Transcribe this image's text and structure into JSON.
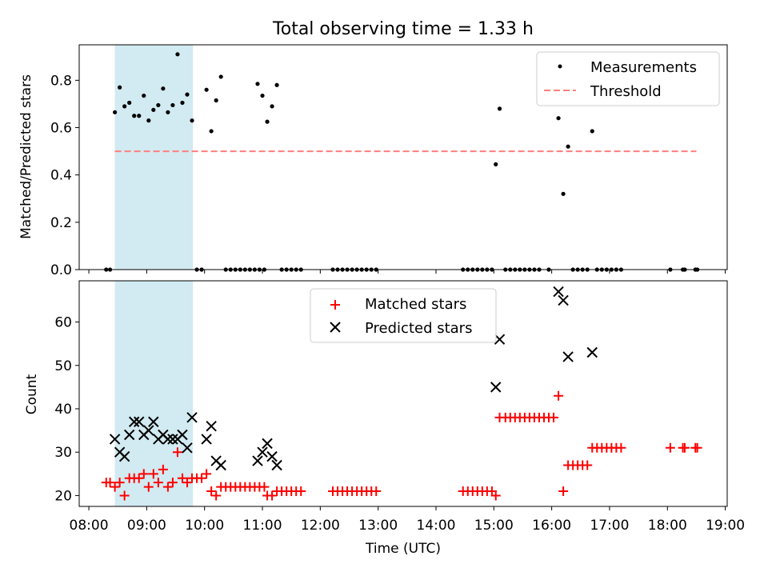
{
  "title": "Total observing time = 1.33 h",
  "colors": {
    "measurement": "#000000",
    "threshold": "#ff7f7f",
    "matched": "#ff0000",
    "predicted": "#000000",
    "highlight": "#add8e6"
  },
  "chart_data": [
    {
      "type": "scatter",
      "ylabel": "Matched/Predicted stars",
      "ylim": [
        0,
        0.95
      ],
      "yticks": [
        0.0,
        0.2,
        0.4,
        0.6,
        0.8
      ],
      "ytick_labels": [
        "0.0",
        "0.2",
        "0.4",
        "0.6",
        "0.8"
      ],
      "highlight_span": [
        "08:27",
        "09:48"
      ],
      "legend": {
        "position": "upper right",
        "entries": [
          "Measurements",
          "Threshold"
        ]
      },
      "threshold": {
        "name": "Threshold",
        "value": 0.5,
        "x_range": [
          "08:27",
          "18:30"
        ]
      },
      "series": [
        {
          "name": "Measurements",
          "points": [
            [
              "08:18",
              0
            ],
            [
              "08:22",
              0
            ],
            [
              "08:27",
              0.665
            ],
            [
              "08:32",
              0.77
            ],
            [
              "08:37",
              0.69
            ],
            [
              "08:42",
              0.705
            ],
            [
              "08:47",
              0.65
            ],
            [
              "08:52",
              0.65
            ],
            [
              "08:57",
              0.735
            ],
            [
              "09:02",
              0.63
            ],
            [
              "09:07",
              0.675
            ],
            [
              "09:12",
              0.695
            ],
            [
              "09:17",
              0.765
            ],
            [
              "09:22",
              0.665
            ],
            [
              "09:27",
              0.695
            ],
            [
              "09:32",
              0.91
            ],
            [
              "09:37",
              0.705
            ],
            [
              "09:42",
              0.74
            ],
            [
              "09:47",
              0.63
            ],
            [
              "09:52",
              0
            ],
            [
              "09:57",
              0
            ],
            [
              "10:02",
              0.76
            ],
            [
              "10:07",
              0.585
            ],
            [
              "10:12",
              0.715
            ],
            [
              "10:17",
              0.815
            ],
            [
              "10:22",
              0
            ],
            [
              "10:27",
              0
            ],
            [
              "10:32",
              0
            ],
            [
              "10:37",
              0
            ],
            [
              "10:42",
              0
            ],
            [
              "10:47",
              0
            ],
            [
              "10:52",
              0
            ],
            [
              "10:57",
              0
            ],
            [
              "11:02",
              0
            ],
            [
              "10:55",
              0.785
            ],
            [
              "11:00",
              0.735
            ],
            [
              "11:05",
              0.625
            ],
            [
              "11:10",
              0.69
            ],
            [
              "11:15",
              0.78
            ],
            [
              "11:20",
              0
            ],
            [
              "11:25",
              0
            ],
            [
              "11:30",
              0
            ],
            [
              "11:35",
              0
            ],
            [
              "11:40",
              0
            ],
            [
              "12:13",
              0
            ],
            [
              "12:18",
              0
            ],
            [
              "12:23",
              0
            ],
            [
              "12:28",
              0
            ],
            [
              "12:33",
              0
            ],
            [
              "12:38",
              0
            ],
            [
              "12:43",
              0
            ],
            [
              "12:48",
              0
            ],
            [
              "12:53",
              0
            ],
            [
              "12:58",
              0
            ],
            [
              "14:28",
              0
            ],
            [
              "14:33",
              0
            ],
            [
              "14:38",
              0
            ],
            [
              "14:43",
              0
            ],
            [
              "14:48",
              0
            ],
            [
              "14:53",
              0
            ],
            [
              "14:58",
              0
            ],
            [
              "15:02",
              0.445
            ],
            [
              "15:06",
              0.68
            ],
            [
              "15:12",
              0
            ],
            [
              "15:17",
              0
            ],
            [
              "15:22",
              0
            ],
            [
              "15:27",
              0
            ],
            [
              "15:32",
              0
            ],
            [
              "15:37",
              0
            ],
            [
              "15:42",
              0
            ],
            [
              "15:47",
              0
            ],
            [
              "15:57",
              0
            ],
            [
              "16:07",
              0.64
            ],
            [
              "16:12",
              0.32
            ],
            [
              "16:17",
              0.52
            ],
            [
              "16:22",
              0
            ],
            [
              "16:27",
              0
            ],
            [
              "16:32",
              0
            ],
            [
              "16:37",
              0
            ],
            [
              "16:42",
              0.585
            ],
            [
              "16:47",
              0
            ],
            [
              "16:52",
              0
            ],
            [
              "16:57",
              0
            ],
            [
              "17:02",
              0
            ],
            [
              "17:07",
              0
            ],
            [
              "17:12",
              0
            ],
            [
              "18:03",
              0
            ],
            [
              "18:16",
              0
            ],
            [
              "18:18",
              0
            ],
            [
              "18:29",
              0
            ],
            [
              "18:31",
              0
            ]
          ]
        }
      ]
    },
    {
      "type": "scatter",
      "xlabel": "Time (UTC)",
      "ylabel": "Count",
      "xlim": [
        "07:50",
        "19:02"
      ],
      "xticks": [
        "08:00",
        "09:00",
        "10:00",
        "11:00",
        "12:00",
        "13:00",
        "14:00",
        "15:00",
        "16:00",
        "17:00",
        "18:00",
        "19:00"
      ],
      "ylim": [
        17.5,
        69.5
      ],
      "yticks": [
        20,
        30,
        40,
        50,
        60
      ],
      "ytick_labels": [
        "20",
        "30",
        "40",
        "50",
        "60"
      ],
      "highlight_span": [
        "08:27",
        "09:48"
      ],
      "legend": {
        "position": "upper center",
        "entries": [
          "Matched stars",
          "Predicted stars"
        ]
      },
      "series": [
        {
          "name": "Matched stars",
          "marker": "+",
          "points": [
            [
              "08:18",
              23
            ],
            [
              "08:22",
              23
            ],
            [
              "08:27",
              22
            ],
            [
              "08:32",
              23
            ],
            [
              "08:37",
              20
            ],
            [
              "08:42",
              24
            ],
            [
              "08:47",
              24
            ],
            [
              "08:52",
              24
            ],
            [
              "08:57",
              25
            ],
            [
              "09:02",
              22
            ],
            [
              "09:07",
              25
            ],
            [
              "09:12",
              23
            ],
            [
              "09:17",
              26
            ],
            [
              "09:22",
              22
            ],
            [
              "09:27",
              23
            ],
            [
              "09:32",
              30
            ],
            [
              "09:37",
              24
            ],
            [
              "09:42",
              23
            ],
            [
              "09:47",
              24
            ],
            [
              "09:52",
              24
            ],
            [
              "09:57",
              24
            ],
            [
              "10:02",
              25
            ],
            [
              "10:07",
              21
            ],
            [
              "10:12",
              20
            ],
            [
              "10:17",
              22
            ],
            [
              "10:22",
              22
            ],
            [
              "10:27",
              22
            ],
            [
              "10:32",
              22
            ],
            [
              "10:37",
              22
            ],
            [
              "10:42",
              22
            ],
            [
              "10:47",
              22
            ],
            [
              "10:52",
              22
            ],
            [
              "10:57",
              22
            ],
            [
              "11:02",
              22
            ],
            [
              "11:05",
              20
            ],
            [
              "11:10",
              20
            ],
            [
              "11:15",
              21
            ],
            [
              "11:20",
              21
            ],
            [
              "11:25",
              21
            ],
            [
              "11:30",
              21
            ],
            [
              "11:35",
              21
            ],
            [
              "11:40",
              21
            ],
            [
              "12:13",
              21
            ],
            [
              "12:18",
              21
            ],
            [
              "12:23",
              21
            ],
            [
              "12:28",
              21
            ],
            [
              "12:33",
              21
            ],
            [
              "12:38",
              21
            ],
            [
              "12:43",
              21
            ],
            [
              "12:48",
              21
            ],
            [
              "12:53",
              21
            ],
            [
              "12:58",
              21
            ],
            [
              "14:28",
              21
            ],
            [
              "14:33",
              21
            ],
            [
              "14:38",
              21
            ],
            [
              "14:43",
              21
            ],
            [
              "14:48",
              21
            ],
            [
              "14:53",
              21
            ],
            [
              "14:58",
              21
            ],
            [
              "15:02",
              20
            ],
            [
              "15:06",
              38
            ],
            [
              "15:12",
              38
            ],
            [
              "15:17",
              38
            ],
            [
              "15:22",
              38
            ],
            [
              "15:27",
              38
            ],
            [
              "15:32",
              38
            ],
            [
              "15:37",
              38
            ],
            [
              "15:42",
              38
            ],
            [
              "15:47",
              38
            ],
            [
              "15:52",
              38
            ],
            [
              "15:57",
              38
            ],
            [
              "16:02",
              38
            ],
            [
              "16:07",
              43
            ],
            [
              "16:12",
              21
            ],
            [
              "16:17",
              27
            ],
            [
              "16:22",
              27
            ],
            [
              "16:27",
              27
            ],
            [
              "16:32",
              27
            ],
            [
              "16:37",
              27
            ],
            [
              "16:42",
              31
            ],
            [
              "16:47",
              31
            ],
            [
              "16:52",
              31
            ],
            [
              "16:57",
              31
            ],
            [
              "17:02",
              31
            ],
            [
              "17:07",
              31
            ],
            [
              "17:12",
              31
            ],
            [
              "18:03",
              31
            ],
            [
              "18:16",
              31
            ],
            [
              "18:18",
              31
            ],
            [
              "18:29",
              31
            ],
            [
              "18:31",
              31
            ]
          ]
        },
        {
          "name": "Predicted stars",
          "marker": "x",
          "points": [
            [
              "08:27",
              33
            ],
            [
              "08:32",
              30
            ],
            [
              "08:37",
              29
            ],
            [
              "08:42",
              34
            ],
            [
              "08:47",
              37
            ],
            [
              "08:52",
              37
            ],
            [
              "08:57",
              34
            ],
            [
              "09:02",
              35
            ],
            [
              "09:07",
              37
            ],
            [
              "09:12",
              33
            ],
            [
              "09:17",
              34
            ],
            [
              "09:22",
              33
            ],
            [
              "09:27",
              33
            ],
            [
              "09:32",
              33
            ],
            [
              "09:37",
              34
            ],
            [
              "09:42",
              31
            ],
            [
              "09:47",
              38
            ],
            [
              "10:02",
              33
            ],
            [
              "10:07",
              36
            ],
            [
              "10:12",
              28
            ],
            [
              "10:17",
              27
            ],
            [
              "10:55",
              28
            ],
            [
              "11:00",
              30
            ],
            [
              "11:05",
              32
            ],
            [
              "11:10",
              29
            ],
            [
              "11:15",
              27
            ],
            [
              "15:02",
              45
            ],
            [
              "15:06",
              56
            ],
            [
              "16:07",
              67
            ],
            [
              "16:12",
              65
            ],
            [
              "16:17",
              52
            ],
            [
              "16:42",
              53
            ]
          ]
        }
      ]
    }
  ]
}
